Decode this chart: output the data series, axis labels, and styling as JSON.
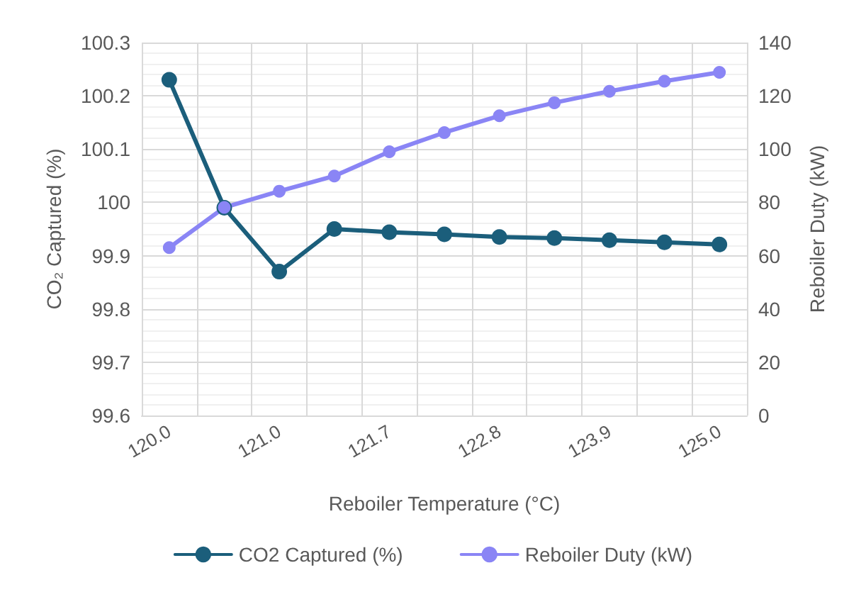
{
  "chart_data": {
    "type": "line",
    "xlabel": "Reboiler Temperature (°C)",
    "ylabel": "CO₂ Captured (%)",
    "y2label": "Reboiler Duty (kW)",
    "categories": [
      "120.0",
      null,
      "121.0",
      null,
      "121.7",
      null,
      "122.8",
      null,
      "123.9",
      null,
      "125.0"
    ],
    "series": [
      {
        "name": "CO2 Captured (%)",
        "color": "#1b5e7b",
        "values": [
          100.23,
          99.99,
          99.87,
          99.95,
          99.944,
          99.94,
          99.935,
          99.933,
          99.929,
          99.925,
          99.921
        ]
      },
      {
        "name": "Reboiler Duty (kW)",
        "color": "#8a85f5",
        "axis": "y2",
        "values": [
          63.0,
          78.1,
          84.2,
          89.9,
          99.0,
          106.2,
          112.5,
          117.4,
          121.7,
          125.5,
          128.8
        ]
      }
    ],
    "ylim": [
      99.6,
      100.3
    ],
    "yticks": [
      {
        "value": 99.6,
        "label": "99.6"
      },
      {
        "value": 99.7,
        "label": "99.7"
      },
      {
        "value": 99.8,
        "label": "99.8"
      },
      {
        "value": 99.9,
        "label": "99.9"
      },
      {
        "value": 100,
        "label": "100"
      },
      {
        "value": 100.1,
        "label": "100.1"
      },
      {
        "value": 100.2,
        "label": "100.2"
      },
      {
        "value": 100.3,
        "label": "100.3"
      }
    ],
    "y2lim": [
      0,
      140
    ],
    "y2ticks": [
      0,
      20,
      40,
      60,
      80,
      100,
      120,
      140
    ],
    "grid": true,
    "legend": "bottom",
    "marker": "circle",
    "line_style": "solid"
  }
}
